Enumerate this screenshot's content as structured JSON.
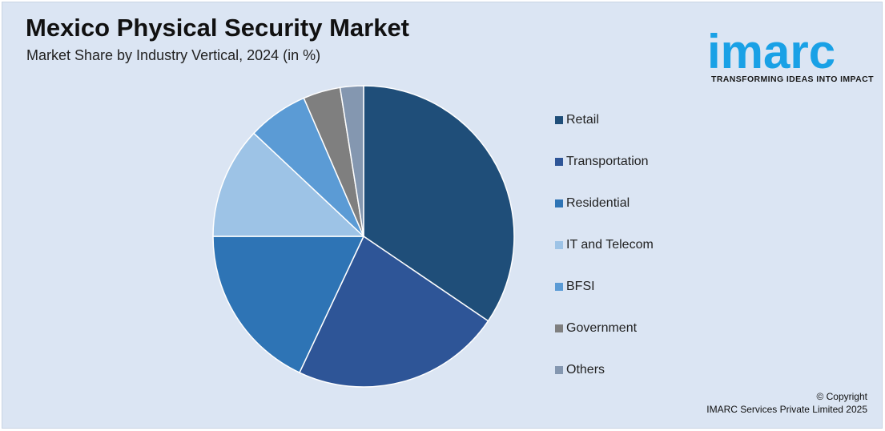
{
  "header": {
    "title": "Mexico Physical Security Market",
    "subtitle": "Market Share by Industry Vertical, 2024 (in %)"
  },
  "logo": {
    "wordmark": "imarc",
    "tagline": "TRANSFORMING IDEAS INTO IMPACT",
    "color": "#19a1e6"
  },
  "chart_data": {
    "type": "pie",
    "title": "Mexico Physical Security Market",
    "subtitle": "Market Share by Industry Vertical, 2024 (in %)",
    "legend_position": "right",
    "categories": [
      "Retail",
      "Transportation",
      "Residential",
      "IT and Telecom",
      "BFSI",
      "Government",
      "Others"
    ],
    "values": [
      34.5,
      22.5,
      18,
      12,
      6.5,
      4,
      2.5
    ],
    "colors": [
      "#1f4e79",
      "#2e5597",
      "#2e74b5",
      "#9dc3e6",
      "#5b9bd5",
      "#7f7f7f",
      "#8497b0"
    ]
  },
  "footer": {
    "copyright_line1": "© Copyright",
    "copyright_line2": "IMARC Services Private Limited 2025"
  }
}
